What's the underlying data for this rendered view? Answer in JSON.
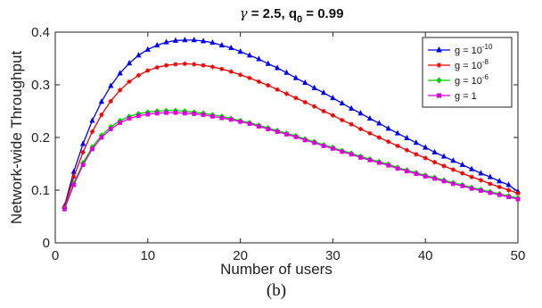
{
  "chart_data": {
    "type": "line",
    "title": {
      "symbol": "γ",
      "main": " = 2.5, q",
      "sub": "0",
      "tail": " = 0.99"
    },
    "xlabel": "Number of users",
    "ylabel": "Network-wide Throughput",
    "xlim": [
      0,
      50
    ],
    "ylim": [
      0,
      0.4
    ],
    "xticks": [
      "0",
      "10",
      "20",
      "30",
      "40",
      "50"
    ],
    "yticks": [
      "0",
      "0.1",
      "0.2",
      "0.3",
      "0.4"
    ],
    "grid": false,
    "legend_position": "top-right",
    "caption": "(b)",
    "x": [
      1,
      2,
      3,
      4,
      5,
      6,
      7,
      8,
      9,
      10,
      11,
      12,
      13,
      14,
      15,
      16,
      17,
      18,
      19,
      20,
      21,
      22,
      23,
      24,
      25,
      26,
      27,
      28,
      29,
      30,
      31,
      32,
      33,
      34,
      35,
      36,
      37,
      38,
      39,
      40,
      41,
      42,
      43,
      44,
      45,
      46,
      47,
      48,
      49,
      50
    ],
    "series": [
      {
        "legend_base": "g = 10",
        "legend_exp": "-10",
        "color": "#0000ee",
        "marker": "triangle",
        "values": [
          0.07,
          0.135,
          0.188,
          0.232,
          0.268,
          0.298,
          0.322,
          0.341,
          0.356,
          0.367,
          0.375,
          0.381,
          0.384,
          0.385,
          0.385,
          0.383,
          0.38,
          0.375,
          0.37,
          0.363,
          0.356,
          0.349,
          0.34,
          0.332,
          0.323,
          0.313,
          0.304,
          0.294,
          0.285,
          0.275,
          0.265,
          0.255,
          0.246,
          0.236,
          0.227,
          0.217,
          0.208,
          0.199,
          0.19,
          0.181,
          0.172,
          0.164,
          0.156,
          0.148,
          0.14,
          0.132,
          0.125,
          0.117,
          0.11,
          0.097
        ]
      },
      {
        "legend_base": "g = 10",
        "legend_exp": "-8",
        "color": "#ee0000",
        "marker": "star",
        "values": [
          0.068,
          0.125,
          0.172,
          0.211,
          0.243,
          0.269,
          0.29,
          0.306,
          0.318,
          0.327,
          0.333,
          0.337,
          0.339,
          0.34,
          0.339,
          0.337,
          0.334,
          0.33,
          0.325,
          0.319,
          0.313,
          0.306,
          0.299,
          0.291,
          0.283,
          0.275,
          0.267,
          0.259,
          0.25,
          0.242,
          0.233,
          0.225,
          0.216,
          0.208,
          0.2,
          0.192,
          0.184,
          0.176,
          0.168,
          0.161,
          0.153,
          0.146,
          0.139,
          0.132,
          0.125,
          0.119,
          0.112,
          0.106,
          0.1,
          0.094
        ]
      },
      {
        "legend_base": "g = 10",
        "legend_exp": "-6",
        "color": "#00cc00",
        "marker": "diamond",
        "values": [
          0.065,
          0.113,
          0.152,
          0.182,
          0.204,
          0.22,
          0.232,
          0.24,
          0.245,
          0.248,
          0.25,
          0.251,
          0.251,
          0.25,
          0.248,
          0.246,
          0.243,
          0.24,
          0.236,
          0.232,
          0.228,
          0.223,
          0.218,
          0.213,
          0.208,
          0.203,
          0.197,
          0.192,
          0.186,
          0.181,
          0.175,
          0.17,
          0.164,
          0.159,
          0.154,
          0.149,
          0.143,
          0.138,
          0.133,
          0.128,
          0.124,
          0.119,
          0.114,
          0.11,
          0.105,
          0.101,
          0.097,
          0.093,
          0.089,
          0.085
        ]
      },
      {
        "legend_base": "g = 1",
        "legend_exp": "",
        "color": "#dd00dd",
        "marker": "square",
        "values": [
          0.064,
          0.11,
          0.148,
          0.178,
          0.2,
          0.216,
          0.228,
          0.236,
          0.241,
          0.244,
          0.246,
          0.247,
          0.247,
          0.246,
          0.245,
          0.243,
          0.24,
          0.237,
          0.234,
          0.23,
          0.226,
          0.221,
          0.216,
          0.211,
          0.206,
          0.201,
          0.195,
          0.19,
          0.184,
          0.179,
          0.173,
          0.168,
          0.162,
          0.157,
          0.152,
          0.147,
          0.141,
          0.136,
          0.131,
          0.126,
          0.122,
          0.117,
          0.112,
          0.108,
          0.103,
          0.099,
          0.095,
          0.091,
          0.087,
          0.083
        ]
      }
    ]
  }
}
